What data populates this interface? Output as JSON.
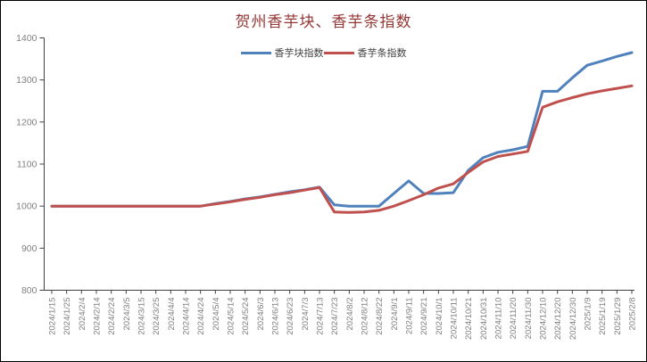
{
  "window": {
    "background_color": "#ffffff",
    "border_color": "#000000"
  },
  "chart_data": {
    "type": "line",
    "title": "贺州香芋块、香芋条指数",
    "title_color": "#953735",
    "legend_position": "top",
    "grid": "off",
    "axis_line_color": "#404040",
    "axis_label_color": "#808080",
    "categories": [
      "2024/1/15",
      "2024/1/25",
      "2024/2/4",
      "2024/2/14",
      "2024/2/24",
      "2024/3/5",
      "2024/3/15",
      "2024/3/25",
      "2024/4/4",
      "2024/4/14",
      "2024/4/24",
      "2024/5/4",
      "2024/5/14",
      "2024/5/24",
      "2024/6/3",
      "2024/6/13",
      "2024/6/23",
      "2024/7/3",
      "2024/7/13",
      "2024/7/23",
      "2024/8/2",
      "2024/8/12",
      "2024/8/22",
      "2024/9/1",
      "2024/9/11",
      "2024/9/21",
      "2024/10/1",
      "2024/10/11",
      "2024/10/21",
      "2024/10/31",
      "2024/11/10",
      "2024/11/20",
      "2024/11/30",
      "2024/12/10",
      "2024/12/20",
      "2024/12/30",
      "2025/1/9",
      "2025/1/19",
      "2025/1/29",
      "2025/2/8"
    ],
    "series": [
      {
        "name": "香芋块指数",
        "color": "#4F81BD",
        "values": [
          1000,
          1000,
          1000,
          1000,
          1000,
          1000,
          1000,
          1000,
          1000,
          1000,
          1000,
          1006,
          1011,
          1017,
          1022,
          1028,
          1034,
          1039,
          1045,
          1003,
          1000,
          1000,
          1000,
          1030,
          1060,
          1030,
          1030,
          1032,
          1085,
          1115,
          1128,
          1134,
          1142,
          1273,
          1273,
          1305,
          1335,
          1345,
          1356,
          1365
        ]
      },
      {
        "name": "香芋条指数",
        "color": "#C0504D",
        "values": [
          1000,
          1000,
          1000,
          1000,
          1000,
          1000,
          1000,
          1000,
          1000,
          1000,
          1000,
          1005,
          1010,
          1016,
          1021,
          1027,
          1032,
          1038,
          1044,
          986,
          985,
          986,
          990,
          1000,
          1013,
          1027,
          1043,
          1053,
          1080,
          1105,
          1118,
          1124,
          1130,
          1235,
          1248,
          1258,
          1267,
          1274,
          1280,
          1286
        ]
      }
    ],
    "y_axis": {
      "min": 800,
      "max": 1400,
      "step": 100,
      "tick_labels": [
        "800",
        "900",
        "1000",
        "1100",
        "1200",
        "1300",
        "1400"
      ]
    }
  }
}
